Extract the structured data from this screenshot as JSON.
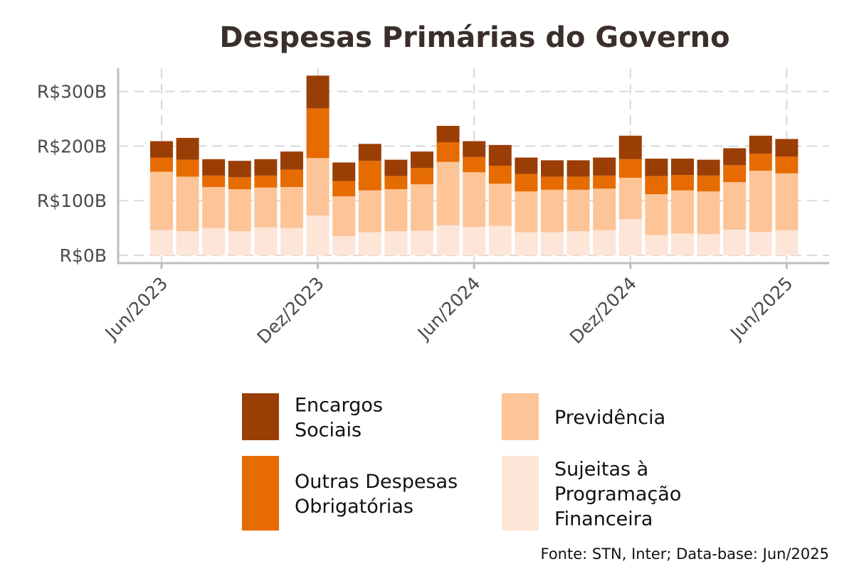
{
  "chart_data": {
    "type": "bar",
    "stacked": true,
    "title": "Despesas Primárias do Governo",
    "xlabel": "",
    "ylabel": "",
    "ylim": [
      0,
      330
    ],
    "unit": "R$ bilhões",
    "y_ticks": [
      0,
      100,
      200,
      300
    ],
    "y_tick_labels": [
      "R$0B",
      "R$100B",
      "R$200B",
      "R$300B"
    ],
    "x_tick_labels": [
      "Jun/2023",
      "Dez/2023",
      "Jun/2024",
      "Dez/2024",
      "Jun/2025"
    ],
    "x_tick_months": [
      "2023-06",
      "2023-12",
      "2024-06",
      "2024-12",
      "2025-06"
    ],
    "months": [
      "2023-06",
      "2023-07",
      "2023-08",
      "2023-09",
      "2023-10",
      "2023-11",
      "2023-12",
      "2024-01",
      "2024-02",
      "2024-03",
      "2024-04",
      "2024-05",
      "2024-06",
      "2024-07",
      "2024-08",
      "2024-09",
      "2024-10",
      "2024-11",
      "2024-12",
      "2025-01",
      "2025-02",
      "2025-03",
      "2025-04",
      "2025-05",
      "2025-06"
    ],
    "series": [
      {
        "name": "Sujeitas à Programação Financeira",
        "color": "#fde5d7",
        "values": [
          46,
          44,
          50,
          44,
          51,
          50,
          73,
          35,
          42,
          44,
          45,
          55,
          52,
          54,
          42,
          42,
          44,
          46,
          66,
          37,
          40,
          39,
          47,
          43,
          46
        ]
      },
      {
        "name": "Previdência",
        "color": "#fdc497",
        "values": [
          107,
          100,
          75,
          77,
          73,
          75,
          105,
          73,
          77,
          77,
          85,
          116,
          100,
          77,
          75,
          78,
          76,
          76,
          76,
          75,
          79,
          78,
          87,
          112,
          104
        ]
      },
      {
        "name": "Outras Despesas Obrigatórias",
        "color": "#e66b00",
        "values": [
          26,
          31,
          21,
          22,
          22,
          32,
          91,
          28,
          54,
          24,
          30,
          36,
          28,
          33,
          32,
          24,
          24,
          24,
          34,
          33,
          28,
          29,
          31,
          31,
          31
        ]
      },
      {
        "name": "Encargos Sociais",
        "color": "#9a3e06",
        "values": [
          30,
          40,
          30,
          30,
          30,
          33,
          60,
          34,
          31,
          30,
          30,
          30,
          29,
          38,
          30,
          30,
          30,
          33,
          43,
          32,
          30,
          29,
          31,
          33,
          32
        ]
      }
    ],
    "legend": {
      "placement": "bottom",
      "order": [
        "Encargos Sociais",
        "Previdência",
        "Outras Despesas Obrigatórias",
        "Sujeitas à Programação Financeira"
      ],
      "label_lines": {
        "Encargos Sociais": [
          "Encargos",
          "Sociais"
        ],
        "Previdência": [
          "Previdência"
        ],
        "Outras Despesas Obrigatórias": [
          "Outras Despesas",
          "Obrigatórias"
        ],
        "Sujeitas à Programação Financeira": [
          "Sujeitas à",
          "Programação",
          "Financeira"
        ]
      }
    },
    "grid": true,
    "source": "Fonte: STN, Inter; Data-base: Jun/2025"
  }
}
